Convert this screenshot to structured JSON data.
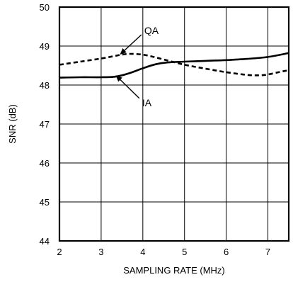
{
  "chart_data": {
    "type": "line",
    "xlabel": "SAMPLING RATE (MHz)",
    "ylabel": "SNR (dB)",
    "xlim": [
      2,
      7.5
    ],
    "ylim": [
      44,
      50
    ],
    "xticks": [
      2,
      3,
      4,
      5,
      6,
      7
    ],
    "yticks": [
      44,
      45,
      46,
      47,
      48,
      49,
      50
    ],
    "grid": true,
    "legend": "none",
    "series": [
      {
        "name": "IA",
        "style": "solid",
        "color": "#000000",
        "x": [
          2.0,
          2.5,
          3.0,
          3.3,
          3.5,
          3.7,
          4.0,
          4.3,
          4.6,
          5.0,
          5.5,
          6.0,
          6.5,
          7.0,
          7.5
        ],
        "y": [
          48.19,
          48.2,
          48.2,
          48.21,
          48.25,
          48.31,
          48.43,
          48.53,
          48.58,
          48.6,
          48.62,
          48.64,
          48.67,
          48.72,
          48.82
        ]
      },
      {
        "name": "QA",
        "style": "dashed",
        "color": "#000000",
        "x": [
          2.0,
          2.5,
          3.0,
          3.3,
          3.5,
          3.7,
          4.0,
          4.3,
          4.7,
          5.0,
          5.5,
          6.0,
          6.5,
          6.8,
          7.0,
          7.3,
          7.5
        ],
        "y": [
          48.52,
          48.6,
          48.68,
          48.74,
          48.78,
          48.8,
          48.78,
          48.71,
          48.6,
          48.52,
          48.42,
          48.33,
          48.26,
          48.25,
          48.27,
          48.34,
          48.38
        ]
      }
    ],
    "annotations": [
      {
        "text": "QA",
        "series": "QA",
        "arrow_to_x": 3.45,
        "arrow_to_y": 48.78,
        "label_x": 4.0,
        "label_y": 49.4
      },
      {
        "text": "IA",
        "series": "IA",
        "arrow_to_x": 3.35,
        "arrow_to_y": 48.25,
        "label_x": 3.95,
        "label_y": 47.55
      }
    ]
  }
}
